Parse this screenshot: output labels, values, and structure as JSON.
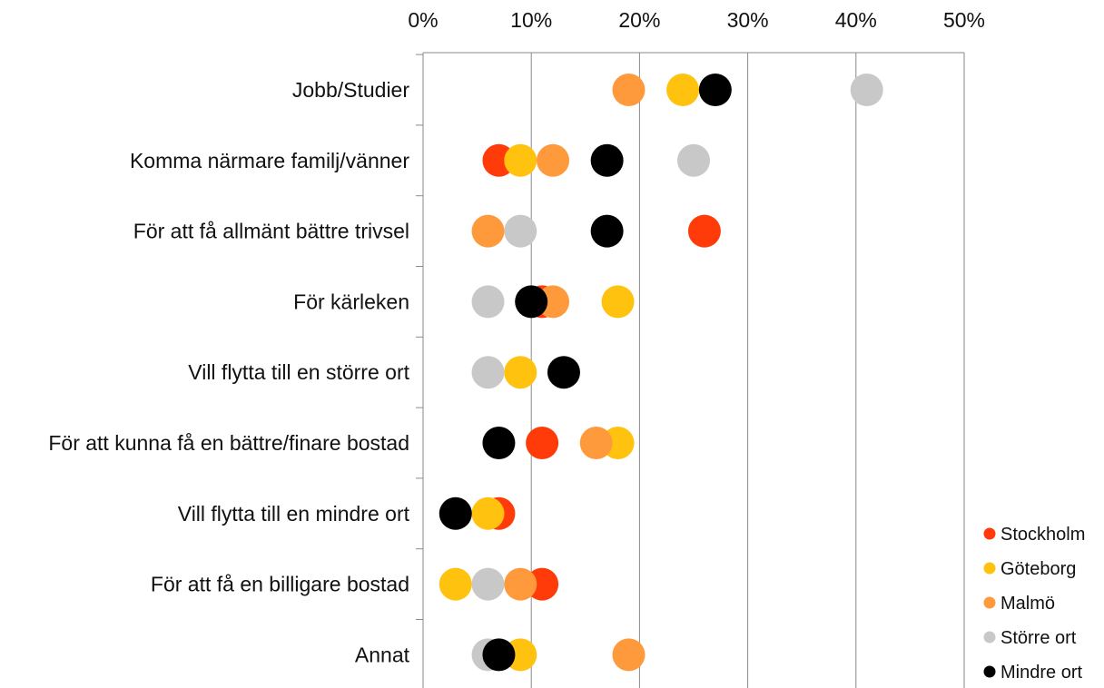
{
  "chart_data": {
    "type": "scatter",
    "orientation": "horizontal",
    "title": "",
    "xlabel": "",
    "ylabel": "",
    "xlim": [
      0,
      50
    ],
    "x_unit": "%",
    "x_tick_labels": [
      "0%",
      "10%",
      "20%",
      "30%",
      "40%",
      "50%"
    ],
    "x_ticks": [
      0,
      10,
      20,
      30,
      40,
      50
    ],
    "x_axis_position": "top",
    "grid": true,
    "legend_position": "bottom-right",
    "categories": [
      "Jobb/Studier",
      "Komma närmare familj/vänner",
      "För att få allmänt bättre trivsel",
      "För kärleken",
      "Vill flytta till en större ort",
      "För att kunna få en bättre/finare bostad",
      "Vill flytta till en mindre ort",
      "För att få en billigare bostad",
      "Annat"
    ],
    "series": [
      {
        "name": "Stockholm",
        "color": "#FF3B0A",
        "values": [
          null,
          7,
          26,
          11,
          null,
          11,
          7,
          11,
          null
        ]
      },
      {
        "name": "Göteborg",
        "color": "#FFC20E",
        "values": [
          24,
          9,
          null,
          18,
          9,
          18,
          6,
          3,
          9
        ]
      },
      {
        "name": "Malmö",
        "color": "#FF9A3C",
        "values": [
          19,
          12,
          6,
          12,
          null,
          16,
          null,
          9,
          19
        ]
      },
      {
        "name": "Större ort",
        "color": "#C8C8C8",
        "values": [
          41,
          25,
          9,
          6,
          6,
          null,
          null,
          6,
          6
        ]
      },
      {
        "name": "Mindre ort",
        "color": "#000000",
        "values": [
          27,
          17,
          17,
          10,
          13,
          7,
          3,
          null,
          7
        ]
      }
    ]
  }
}
